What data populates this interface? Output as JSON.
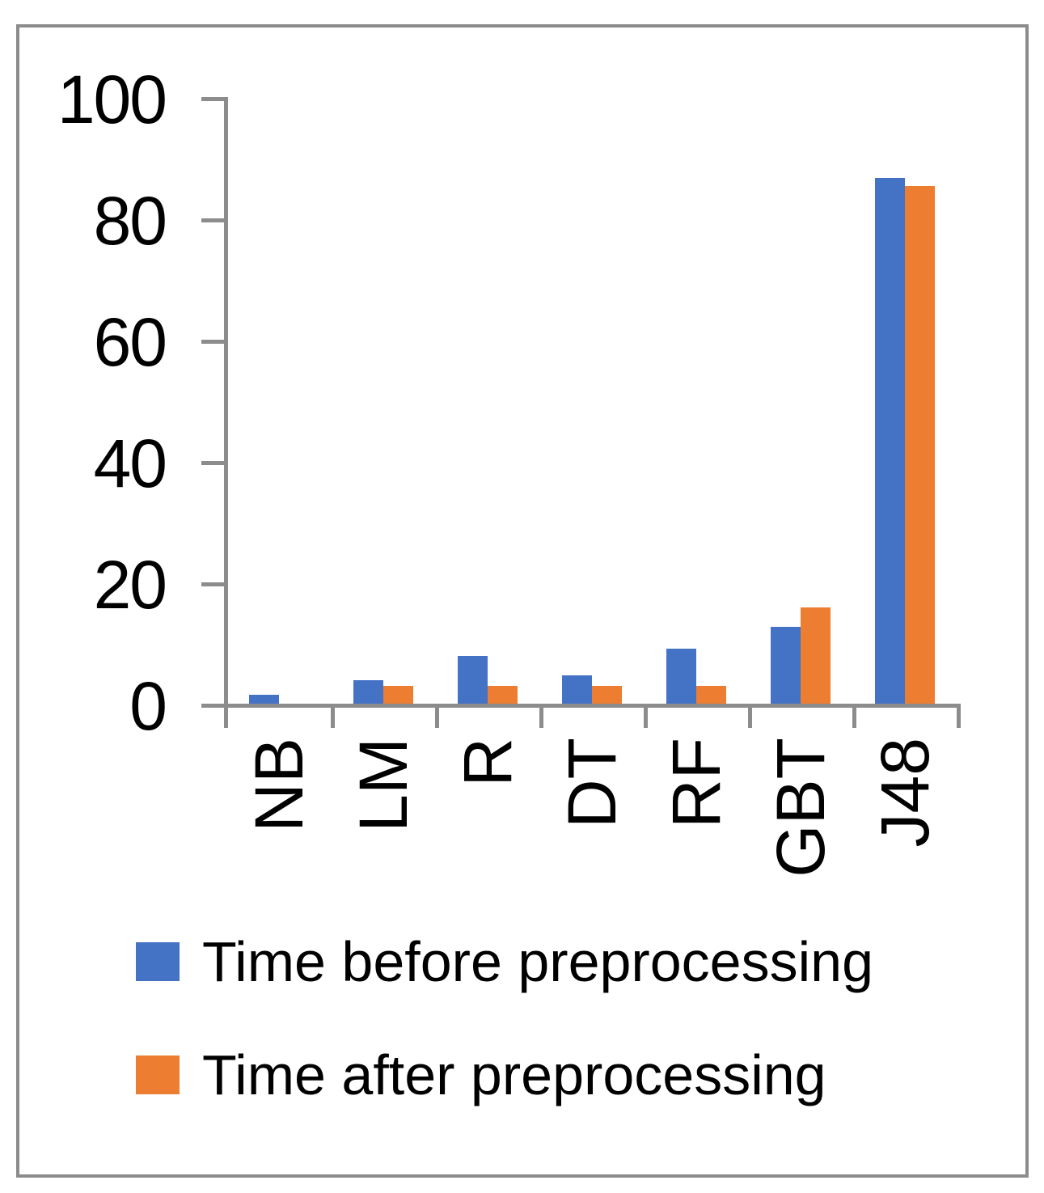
{
  "chart_data": {
    "type": "bar",
    "categories": [
      "NB",
      "LM",
      "R",
      "DT",
      "RF",
      "GBT",
      "J48"
    ],
    "series": [
      {
        "name": "Time before preprocessing",
        "color": "#4472C4",
        "values": [
          1.4,
          3.9,
          7.9,
          4.6,
          9.0,
          12.7,
          86.7
        ]
      },
      {
        "name": "Time after preprocessing",
        "color": "#ED7D31",
        "values": [
          0,
          2.9,
          2.9,
          2.9,
          2.9,
          15.8,
          85.3
        ]
      }
    ],
    "title": "",
    "xlabel": "",
    "ylabel": "",
    "ylim": [
      0,
      100
    ],
    "y_tick_step": 20,
    "y_tick_labels": [
      "0",
      "20",
      "40",
      "60",
      "80",
      "100"
    ],
    "grid": false,
    "legend_position": "bottom"
  },
  "colors": {
    "axis": "#8c8c8c",
    "border": "#8c8c8c",
    "series_before": "#4472C4",
    "series_after": "#ED7D31",
    "text": "#000000"
  }
}
